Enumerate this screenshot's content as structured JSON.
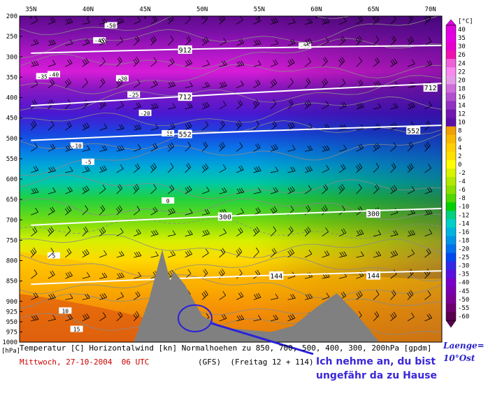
{
  "chart_data": {
    "type": "heatmap",
    "x_axis": {
      "ticks": [
        "35N",
        "40N",
        "45N",
        "50N",
        "55N",
        "60N",
        "65N",
        "70N"
      ]
    },
    "y_axis": {
      "unit_label": "[hPa]",
      "ticks": [
        "200",
        "250",
        "300",
        "350",
        "400",
        "450",
        "500",
        "550",
        "600",
        "650",
        "700",
        "750",
        "800",
        "850",
        "900",
        "925",
        "950",
        "975",
        "1000"
      ]
    },
    "colorbar": {
      "unit_label": "[°C]",
      "levels": [
        "40",
        "35",
        "30",
        "26",
        "24",
        "22",
        "20",
        "18",
        "16",
        "14",
        "12",
        "10",
        "8",
        "6",
        "4",
        "2",
        "0",
        "-2",
        "-4",
        "-6",
        "-8",
        "-10",
        "-12",
        "-14",
        "-16",
        "-18",
        "-20",
        "-25",
        "-30",
        "-35",
        "-40",
        "-45",
        "-50",
        "-55",
        "-60"
      ],
      "colors": [
        "#e000e0",
        "#e600e6",
        "#e800d0",
        "#f010b0",
        "#f060d8",
        "#fa88f0",
        "#e49ce8",
        "#d06cdc",
        "#b24ed0",
        "#9030c4",
        "#7018b0",
        "#5c10a8",
        "#f0a000",
        "#f8b800",
        "#ffd000",
        "#ffe000",
        "#ffff00",
        "#d8f200",
        "#b0ea00",
        "#88e000",
        "#50d800",
        "#00d000",
        "#00d080",
        "#00d0c8",
        "#00b4e0",
        "#0094e8",
        "#0070f0",
        "#0048f0",
        "#3228e8",
        "#5a10e0",
        "#7800c8",
        "#7a00b0",
        "#7c0096",
        "#6e0070",
        "#5a0050"
      ]
    },
    "geopotential_isolines": [
      {
        "label": "912",
        "lat_start": 35,
        "p_start": 291,
        "lat_end": 71,
        "p_end": 272
      },
      {
        "label": "712",
        "lat_start": 35,
        "p_start": 420,
        "lat_end": 71,
        "p_end": 365
      },
      {
        "label": "552",
        "lat_start": 35,
        "p_start": 505,
        "lat_end": 71,
        "p_end": 468
      },
      {
        "label": "300",
        "lat_start": 35,
        "p_start": 713,
        "lat_end": 71,
        "p_end": 672
      },
      {
        "label": "144",
        "lat_start": 35,
        "p_start": 858,
        "lat_end": 71,
        "p_end": 825
      }
    ],
    "isotherm_labels": [
      "-50",
      "-45",
      "-40",
      "-35",
      "-30",
      "-25",
      "-20",
      "-15",
      "-10",
      "-5",
      "0",
      "5",
      "10",
      "15",
      "-55"
    ],
    "terrain_peaks": [
      {
        "lat": 46.5,
        "p": 773
      },
      {
        "lat": 47.5,
        "p": 825
      },
      {
        "lat": 61.8,
        "p": 880
      }
    ]
  },
  "footer": {
    "line1": "Temperatur [C] Horizontalwind [kn] Normalhoehen zu 850, 700, 500, 400, 300, 200hPa [gpdm]",
    "date": "Mittwoch, 27-10-2004  06 UTC",
    "run": "(GFS)  (Freitag 12 + 114)"
  },
  "annotation": {
    "line1": "Ich nehme an, du bist",
    "line2": "ungefähr da zu Hause",
    "laenge_line1": "Laenge=",
    "laenge_line2": "10°Ost"
  },
  "colors": {
    "annotation": "#3a28d8",
    "date": "#cc0000",
    "terrain": "#808080"
  }
}
